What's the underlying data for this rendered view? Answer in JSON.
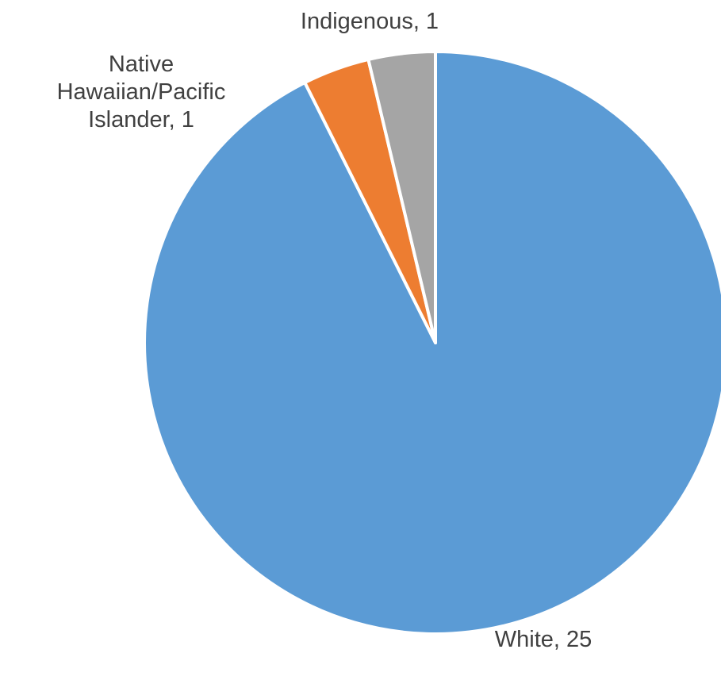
{
  "chart_data": {
    "type": "pie",
    "title": "",
    "slices": [
      {
        "label": "White",
        "value": 25,
        "data_label": "White, 25",
        "color": "#5B9BD5"
      },
      {
        "label": "Native Hawaiian/Pacific Islander",
        "value": 1,
        "data_label_lines": [
          "Native",
          "Hawaiian/Pacific",
          "Islander, 1"
        ],
        "color": "#ED7D31"
      },
      {
        "label": "Indigenous",
        "value": 1,
        "data_label": "Indigenous, 1",
        "color": "#A5A5A5"
      }
    ],
    "start_angle": "12 o'clock",
    "direction": "clockwise",
    "legend": "none"
  }
}
